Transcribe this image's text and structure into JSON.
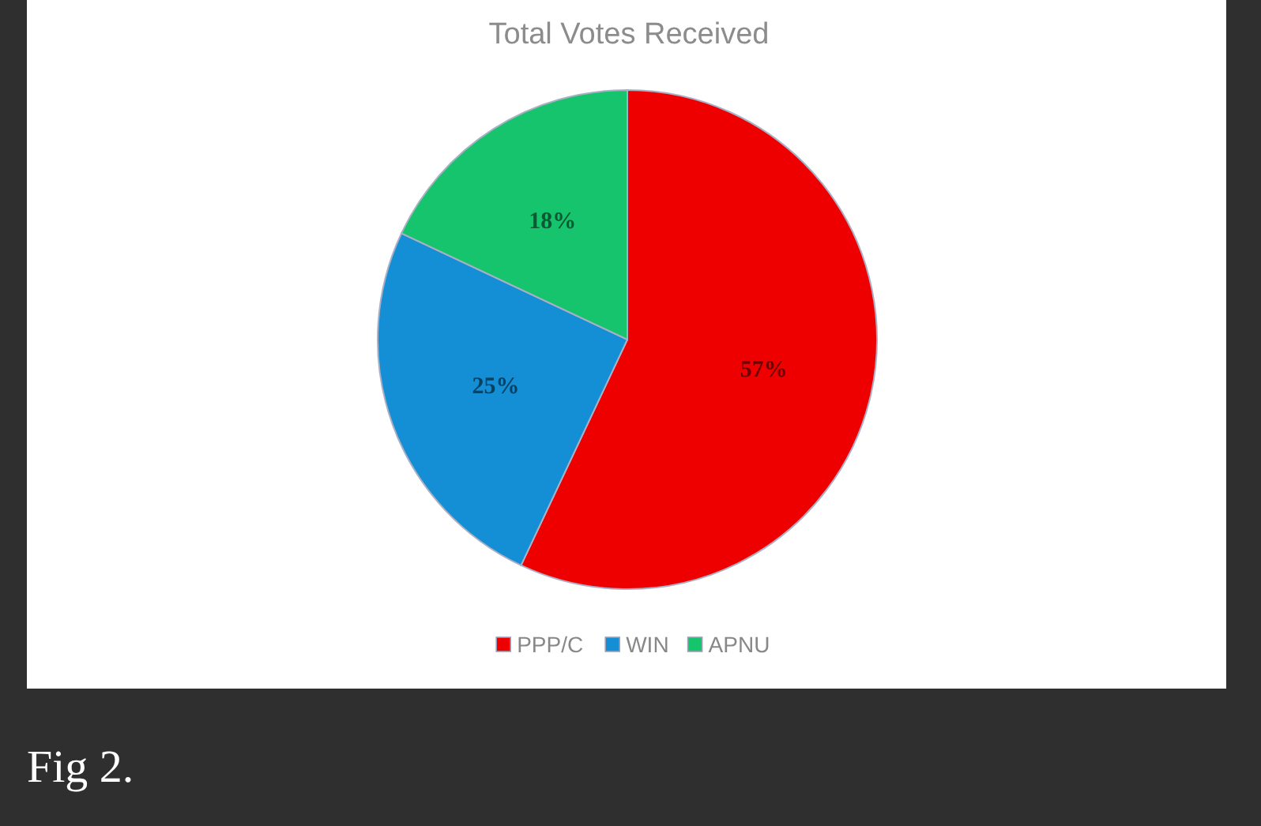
{
  "chart_data": {
    "type": "pie",
    "title": "Total Votes Received",
    "categories": [
      "PPP/C",
      "WIN",
      "APNU"
    ],
    "values": [
      57,
      25,
      18
    ],
    "colors": [
      "#ee0000",
      "#148fd6",
      "#16c46e"
    ],
    "value_labels": [
      "57%",
      "25%",
      "18%"
    ],
    "legend": "bottom",
    "annotations": [
      "Fig 2."
    ]
  }
}
